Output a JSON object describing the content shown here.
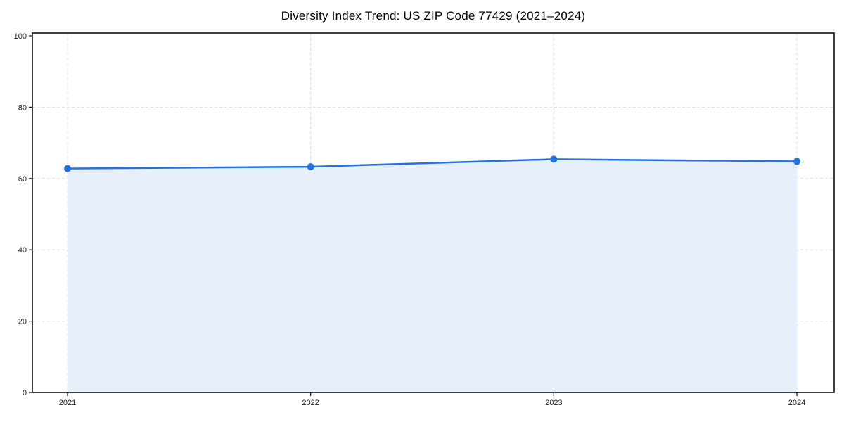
{
  "page": {
    "background": "#ffffff"
  },
  "chart_data": {
    "type": "area",
    "title": "Diversity Index Trend: US ZIP Code 77429 (2021–2024)",
    "categories": [
      "2021",
      "2022",
      "2023",
      "2024"
    ],
    "series": [
      {
        "name": "Diversity Index",
        "values": [
          62.8,
          63.3,
          65.4,
          64.8
        ]
      }
    ],
    "xlabel": "",
    "ylabel": "",
    "ylim": [
      0,
      100
    ],
    "yticks": [
      0,
      20,
      40,
      60,
      80,
      100
    ],
    "grid": true,
    "grid_style": "dashed",
    "legend_position": "none",
    "colors": {
      "line": "#2272E3",
      "marker": "#2272E3",
      "fill": "#E7EFFB",
      "grid": "#DCDCDC",
      "axis": "#000000",
      "tick_text": "#1a1a1a"
    }
  }
}
